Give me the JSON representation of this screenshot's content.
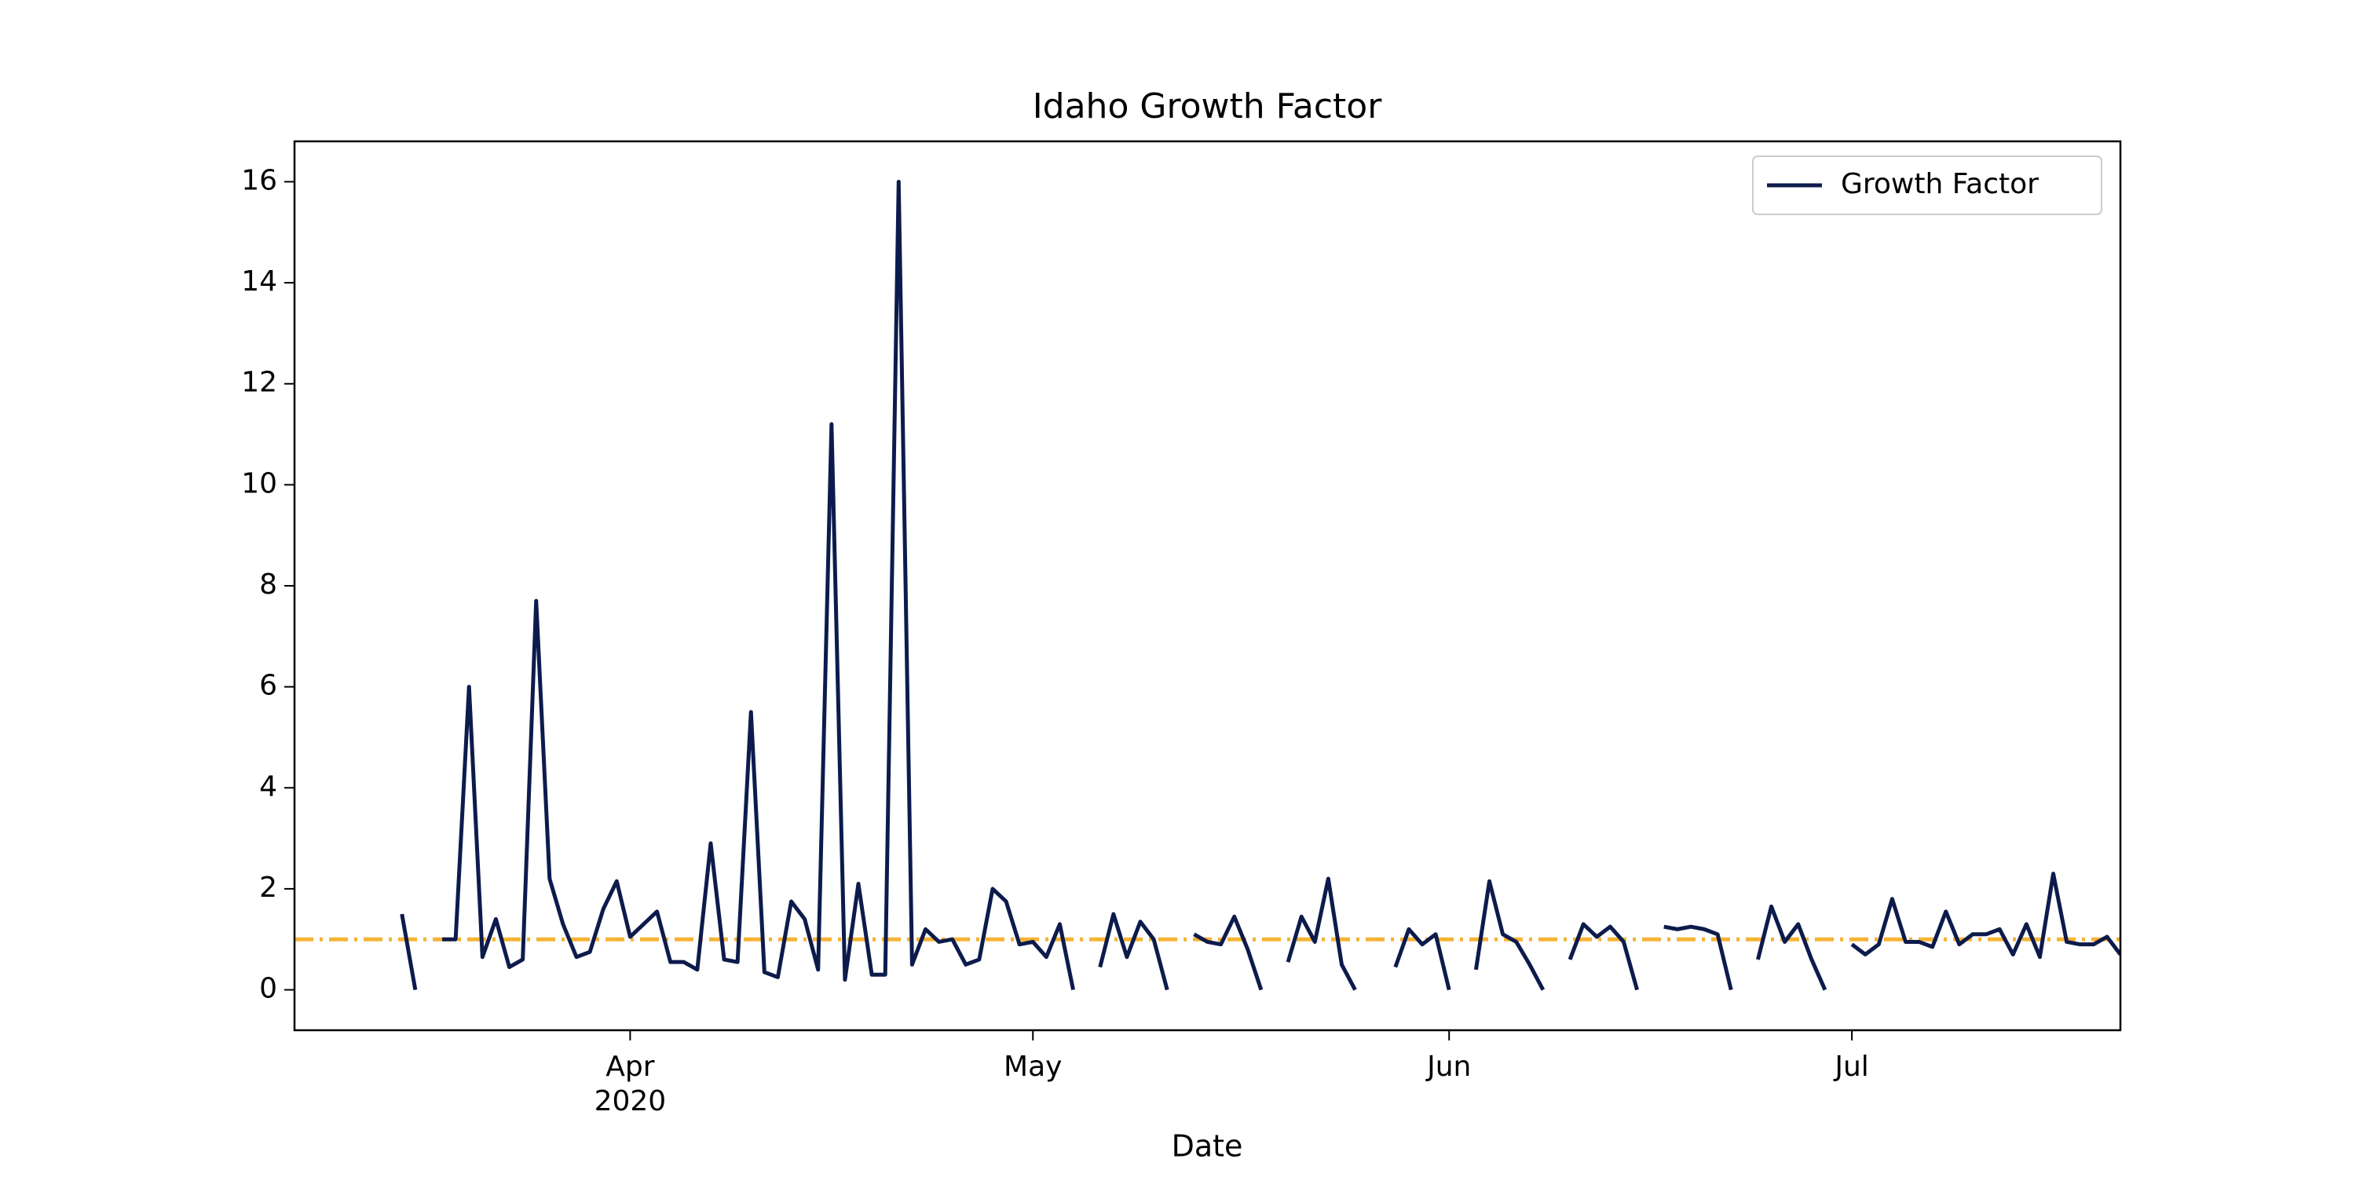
{
  "chart_data": {
    "type": "line",
    "title": "Idaho Growth Factor",
    "xlabel": "Date",
    "x_year_label": "2020",
    "x": [
      "2020-03-15",
      "2020-03-16",
      "2020-03-17",
      "2020-03-18",
      "2020-03-19",
      "2020-03-20",
      "2020-03-21",
      "2020-03-22",
      "2020-03-23",
      "2020-03-24",
      "2020-03-25",
      "2020-03-26",
      "2020-03-27",
      "2020-03-28",
      "2020-03-29",
      "2020-03-30",
      "2020-03-31",
      "2020-04-01",
      "2020-04-02",
      "2020-04-03",
      "2020-04-04",
      "2020-04-05",
      "2020-04-06",
      "2020-04-07",
      "2020-04-08",
      "2020-04-09",
      "2020-04-10",
      "2020-04-11",
      "2020-04-12",
      "2020-04-13",
      "2020-04-14",
      "2020-04-15",
      "2020-04-16",
      "2020-04-17",
      "2020-04-18",
      "2020-04-19",
      "2020-04-20",
      "2020-04-21",
      "2020-04-22",
      "2020-04-23",
      "2020-04-24",
      "2020-04-25",
      "2020-04-26",
      "2020-04-27",
      "2020-04-28",
      "2020-04-29",
      "2020-04-30",
      "2020-05-01",
      "2020-05-02",
      "2020-05-03",
      "2020-05-04",
      "2020-05-05",
      "2020-05-06",
      "2020-05-07",
      "2020-05-08",
      "2020-05-09",
      "2020-05-10",
      "2020-05-11",
      "2020-05-12",
      "2020-05-13",
      "2020-05-14",
      "2020-05-15",
      "2020-05-16",
      "2020-05-17",
      "2020-05-18",
      "2020-05-19",
      "2020-05-20",
      "2020-05-21",
      "2020-05-22",
      "2020-05-23",
      "2020-05-24",
      "2020-05-25",
      "2020-05-26",
      "2020-05-27",
      "2020-05-28",
      "2020-05-29",
      "2020-05-30",
      "2020-05-31",
      "2020-06-01",
      "2020-06-02",
      "2020-06-03",
      "2020-06-04",
      "2020-06-05",
      "2020-06-06",
      "2020-06-07",
      "2020-06-08",
      "2020-06-09",
      "2020-06-10",
      "2020-06-11",
      "2020-06-12",
      "2020-06-13",
      "2020-06-14",
      "2020-06-15",
      "2020-06-16",
      "2020-06-17",
      "2020-06-18",
      "2020-06-19",
      "2020-06-20",
      "2020-06-21",
      "2020-06-22",
      "2020-06-23",
      "2020-06-24",
      "2020-06-25",
      "2020-06-26",
      "2020-06-27",
      "2020-06-28",
      "2020-06-29",
      "2020-06-30",
      "2020-07-01",
      "2020-07-02",
      "2020-07-03",
      "2020-07-04",
      "2020-07-05",
      "2020-07-06",
      "2020-07-07",
      "2020-07-08",
      "2020-07-09",
      "2020-07-10",
      "2020-07-11",
      "2020-07-12",
      "2020-07-13",
      "2020-07-14",
      "2020-07-15",
      "2020-07-16",
      "2020-07-17",
      "2020-07-18",
      "2020-07-19",
      "2020-07-20",
      "2020-07-21"
    ],
    "series": [
      {
        "name": "Growth Factor",
        "color": "#0d1b4c",
        "values": [
          1.5,
          0,
          null,
          1.0,
          1.0,
          6.0,
          0.65,
          1.4,
          0.45,
          0.6,
          7.7,
          2.2,
          1.3,
          0.65,
          0.75,
          1.6,
          2.15,
          1.05,
          1.3,
          1.55,
          0.55,
          0.55,
          0.4,
          2.9,
          0.6,
          0.55,
          5.5,
          0.35,
          0.25,
          1.75,
          1.4,
          0.4,
          11.2,
          0.2,
          2.1,
          0.3,
          0.3,
          16.0,
          0.5,
          1.2,
          0.95,
          1.0,
          0.5,
          0.6,
          2.0,
          1.75,
          0.9,
          0.95,
          0.65,
          1.3,
          0,
          null,
          0.45,
          1.5,
          0.65,
          1.35,
          1.0,
          0,
          null,
          1.1,
          0.95,
          0.9,
          1.45,
          0.8,
          0,
          null,
          0.55,
          1.45,
          0.95,
          2.2,
          0.5,
          0,
          null,
          null,
          0.45,
          1.2,
          0.9,
          1.1,
          0,
          null,
          0.4,
          2.15,
          1.1,
          0.95,
          0.5,
          0,
          null,
          0.6,
          1.3,
          1.05,
          1.25,
          0.95,
          0,
          null,
          1.25,
          1.2,
          1.25,
          1.2,
          1.1,
          0,
          null,
          0.6,
          1.65,
          0.95,
          1.3,
          0.6,
          0,
          null,
          0.9,
          0.7,
          0.9,
          1.8,
          0.95,
          0.95,
          0.85,
          1.55,
          0.9,
          1.1,
          1.1,
          1.2,
          0.7,
          1.3,
          0.65,
          2.3,
          0.95,
          0.9,
          0.9,
          1.05,
          0.7
        ]
      }
    ],
    "reference_line": {
      "value": 1,
      "color": "#f5b335"
    },
    "xlim": [
      "2020-03-07",
      "2020-07-21"
    ],
    "xticks": [
      {
        "value": "2020-04-01",
        "label": "Apr"
      },
      {
        "value": "2020-05-01",
        "label": "May"
      },
      {
        "value": "2020-06-01",
        "label": "Jun"
      },
      {
        "value": "2020-07-01",
        "label": "Jul"
      }
    ],
    "ylim": [
      -0.8,
      16.8
    ],
    "yticks": [
      0,
      2,
      4,
      6,
      8,
      10,
      12,
      14,
      16
    ],
    "grid": false,
    "legend": "upper right"
  }
}
